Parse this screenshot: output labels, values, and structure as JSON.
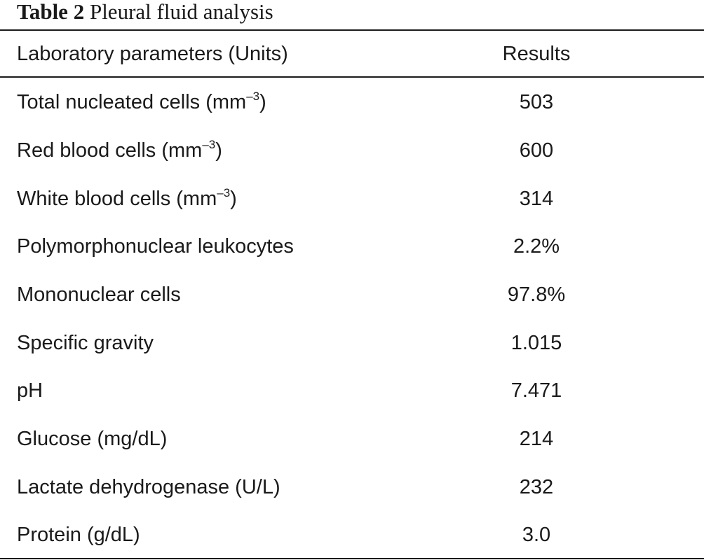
{
  "caption": {
    "label": "Table 2",
    "title": "Pleural fluid analysis"
  },
  "table": {
    "headers": {
      "parameter": "Laboratory parameters (Units)",
      "result": "Results"
    },
    "rows": [
      {
        "parameter": "Total nucleated cells (mm",
        "superscript": "–3",
        "suffix": ")",
        "result": "503"
      },
      {
        "parameter": "Red blood cells (mm",
        "superscript": "–3",
        "suffix": ")",
        "result": "600"
      },
      {
        "parameter": "White blood cells (mm",
        "superscript": "–3",
        "suffix": ")",
        "result": "314"
      },
      {
        "parameter": "Polymorphonuclear leukocytes",
        "result": "2.2%"
      },
      {
        "parameter": "Mononuclear cells",
        "result": "97.8%"
      },
      {
        "parameter": "Specific gravity",
        "result": "1.015"
      },
      {
        "parameter": "pH",
        "result": "7.471"
      },
      {
        "parameter": "Glucose (mg/dL)",
        "result": "214"
      },
      {
        "parameter": "Lactate dehydrogenase (U/L)",
        "result": "232"
      },
      {
        "parameter": "Protein (g/dL)",
        "result": "3.0"
      }
    ]
  }
}
